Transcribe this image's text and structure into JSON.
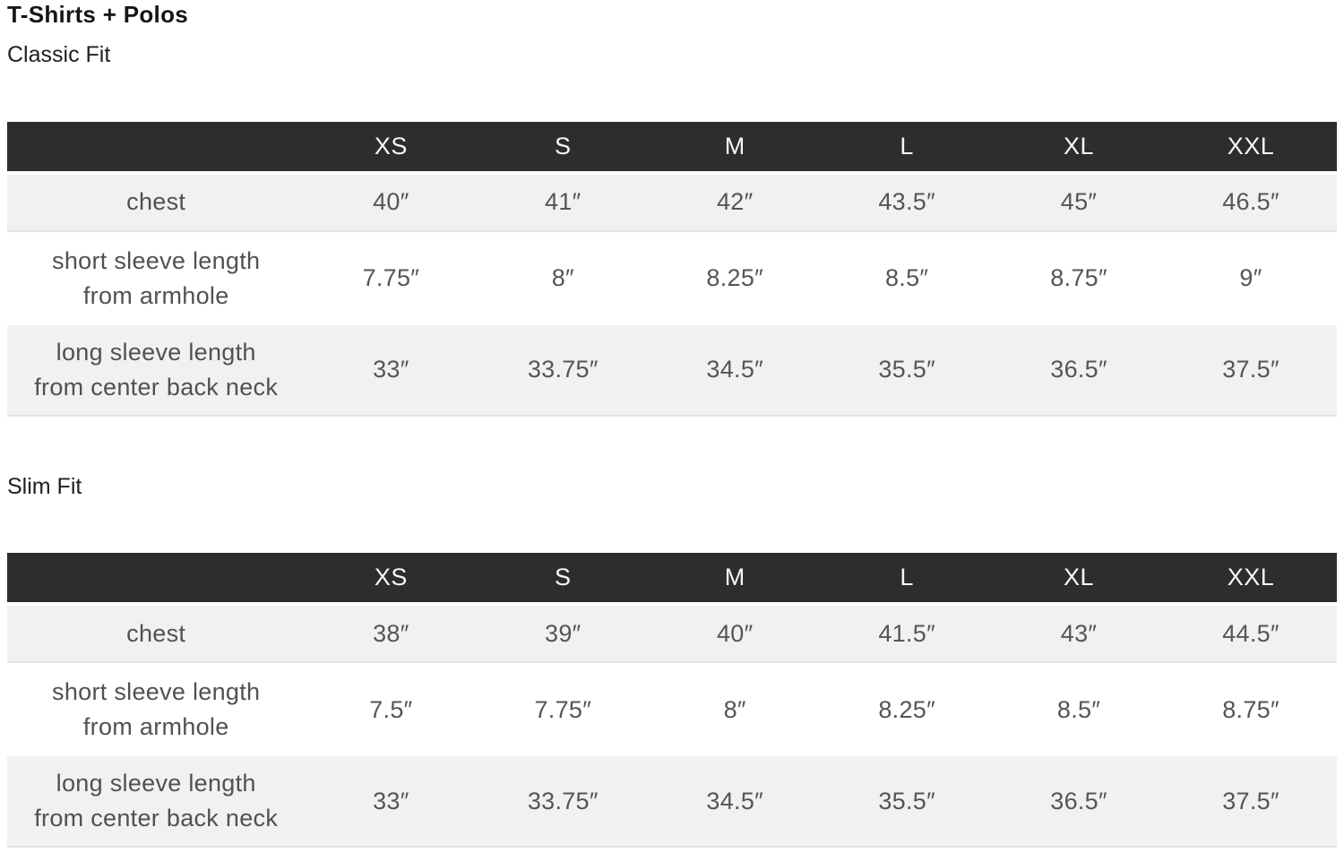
{
  "page": {
    "title": "T-Shirts + Polos"
  },
  "colors": {
    "header_bg": "#2d2d2d",
    "header_text": "#f7f7f7",
    "shaded_row_bg": "#f1f1f1",
    "body_text": "#555555",
    "title_text": "#161616"
  },
  "chart_data": [
    {
      "type": "table",
      "title": "Classic Fit",
      "columns": [
        "",
        "XS",
        "S",
        "M",
        "L",
        "XL",
        "XXL"
      ],
      "rows": [
        {
          "label": "chest",
          "values": [
            "40″",
            "41″",
            "42″",
            "43.5″",
            "45″",
            "46.5″"
          ]
        },
        {
          "label": "short sleeve length\nfrom armhole",
          "values": [
            "7.75″",
            "8″",
            "8.25″",
            "8.5″",
            "8.75″",
            "9″"
          ]
        },
        {
          "label": "long sleeve length\nfrom center back neck",
          "values": [
            "33″",
            "33.75″",
            "34.5″",
            "35.5″",
            "36.5″",
            "37.5″"
          ]
        }
      ]
    },
    {
      "type": "table",
      "title": "Slim Fit",
      "columns": [
        "",
        "XS",
        "S",
        "M",
        "L",
        "XL",
        "XXL"
      ],
      "rows": [
        {
          "label": "chest",
          "values": [
            "38″",
            "39″",
            "40″",
            "41.5″",
            "43″",
            "44.5″"
          ]
        },
        {
          "label": "short sleeve length\nfrom armhole",
          "values": [
            "7.5″",
            "7.75″",
            "8″",
            "8.25″",
            "8.5″",
            "8.75″"
          ]
        },
        {
          "label": "long sleeve length\nfrom center back neck",
          "values": [
            "33″",
            "33.75″",
            "34.5″",
            "35.5″",
            "36.5″",
            "37.5″"
          ]
        }
      ]
    }
  ]
}
